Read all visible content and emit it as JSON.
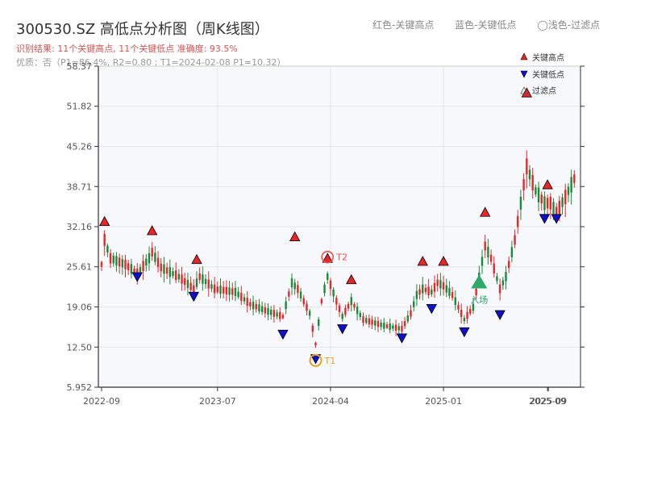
{
  "title": "300530.SZ 高低点分析图（周K线图）",
  "summary": "识别结果: 11个关键高点, 11个关键低点   准确度: 93.5%",
  "quality": "优质：否（P1=86.4%, R2=0.80 ; T1=2024-02-08 P1=10.32）",
  "top_legend": [
    "红色-关键高点",
    "蓝色-关键低点",
    "◯浅色-过滤点"
  ],
  "colors": {
    "up": "#e8262a",
    "down": "#1a8a3a",
    "high_marker": "#e8262a",
    "low_marker": "#1010cc",
    "entry": "#2ca86a",
    "t1": "#e8a020",
    "t2": "#e85050"
  },
  "chart_data": {
    "type": "candlestick",
    "yticks": [
      "58.37",
      "51.82",
      "45.26",
      "38.71",
      "32.16",
      "25.61",
      "19.06",
      "12.50",
      "5.952"
    ],
    "ylim": [
      5.952,
      58.37
    ],
    "xticks": [
      "2022-09",
      "2023-07",
      "2024-04",
      "2025-01",
      "2025-09",
      "2025-09"
    ],
    "xlim": [
      0,
      160
    ],
    "legend": [
      "关键高点",
      "关键低点",
      "过滤点"
    ],
    "annotations": {
      "t1": "T1",
      "t2": "T2",
      "entry": "入场"
    },
    "key_highs": [
      {
        "x": 1,
        "price": 33.0
      },
      {
        "x": 17,
        "price": 31.5
      },
      {
        "x": 32,
        "price": 26.8
      },
      {
        "x": 65,
        "price": 30.5
      },
      {
        "x": 76,
        "price": 27.0
      },
      {
        "x": 84,
        "price": 23.5
      },
      {
        "x": 108,
        "price": 26.5
      },
      {
        "x": 115,
        "price": 26.5
      },
      {
        "x": 129,
        "price": 34.5
      },
      {
        "x": 143,
        "price": 54.0
      },
      {
        "x": 150,
        "price": 39.0
      }
    ],
    "key_lows": [
      {
        "x": 12,
        "price": 24.0
      },
      {
        "x": 31,
        "price": 20.8
      },
      {
        "x": 61,
        "price": 14.6
      },
      {
        "x": 72,
        "price": 10.6
      },
      {
        "x": 81,
        "price": 15.5
      },
      {
        "x": 101,
        "price": 14.0
      },
      {
        "x": 111,
        "price": 18.8
      },
      {
        "x": 122,
        "price": 15.0
      },
      {
        "x": 134,
        "price": 17.8
      },
      {
        "x": 149,
        "price": 33.5
      },
      {
        "x": 153,
        "price": 33.5
      }
    ],
    "t1_point": {
      "x": 72,
      "price": 10.32
    },
    "t2_point": {
      "x": 76,
      "price": 27.2
    },
    "entry_point": {
      "x": 127,
      "price": 23.0
    }
  }
}
